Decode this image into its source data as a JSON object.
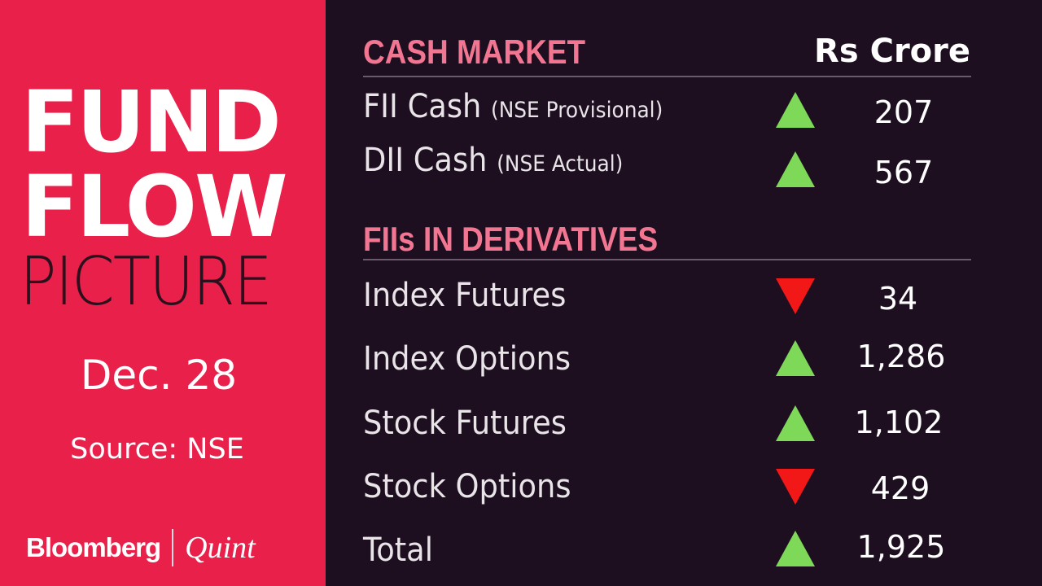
{
  "title": {
    "line1": "FUND",
    "line2": "FLOW",
    "line3": "PICTURE"
  },
  "date": "Dec. 28",
  "source": "Source: NSE",
  "logo": {
    "left": "Bloomberg",
    "right": "Quint"
  },
  "unit": "Rs Crore",
  "colors": {
    "left_panel": "#e8204a",
    "background": "#1d0e20",
    "heading": "#f27691",
    "up": "#7dd957",
    "down": "#f21818"
  },
  "cash_market": {
    "heading": "CASH MARKET",
    "rows": [
      {
        "label": "FII Cash",
        "sub": "(NSE Provisional)",
        "direction": "up",
        "value": "207"
      },
      {
        "label": "DII Cash",
        "sub": "(NSE Actual)",
        "direction": "up",
        "value": "567"
      }
    ]
  },
  "derivatives": {
    "heading": "FIIs IN DERIVATIVES",
    "rows": [
      {
        "label": "Index Futures",
        "direction": "down",
        "value": "34"
      },
      {
        "label": "Index Options",
        "direction": "up",
        "value": "1,286"
      },
      {
        "label": "Stock Futures",
        "direction": "up",
        "value": "1,102"
      },
      {
        "label": "Stock Options",
        "direction": "down",
        "value": "429"
      },
      {
        "label": "Total",
        "direction": "up",
        "value": "1,925"
      }
    ]
  }
}
